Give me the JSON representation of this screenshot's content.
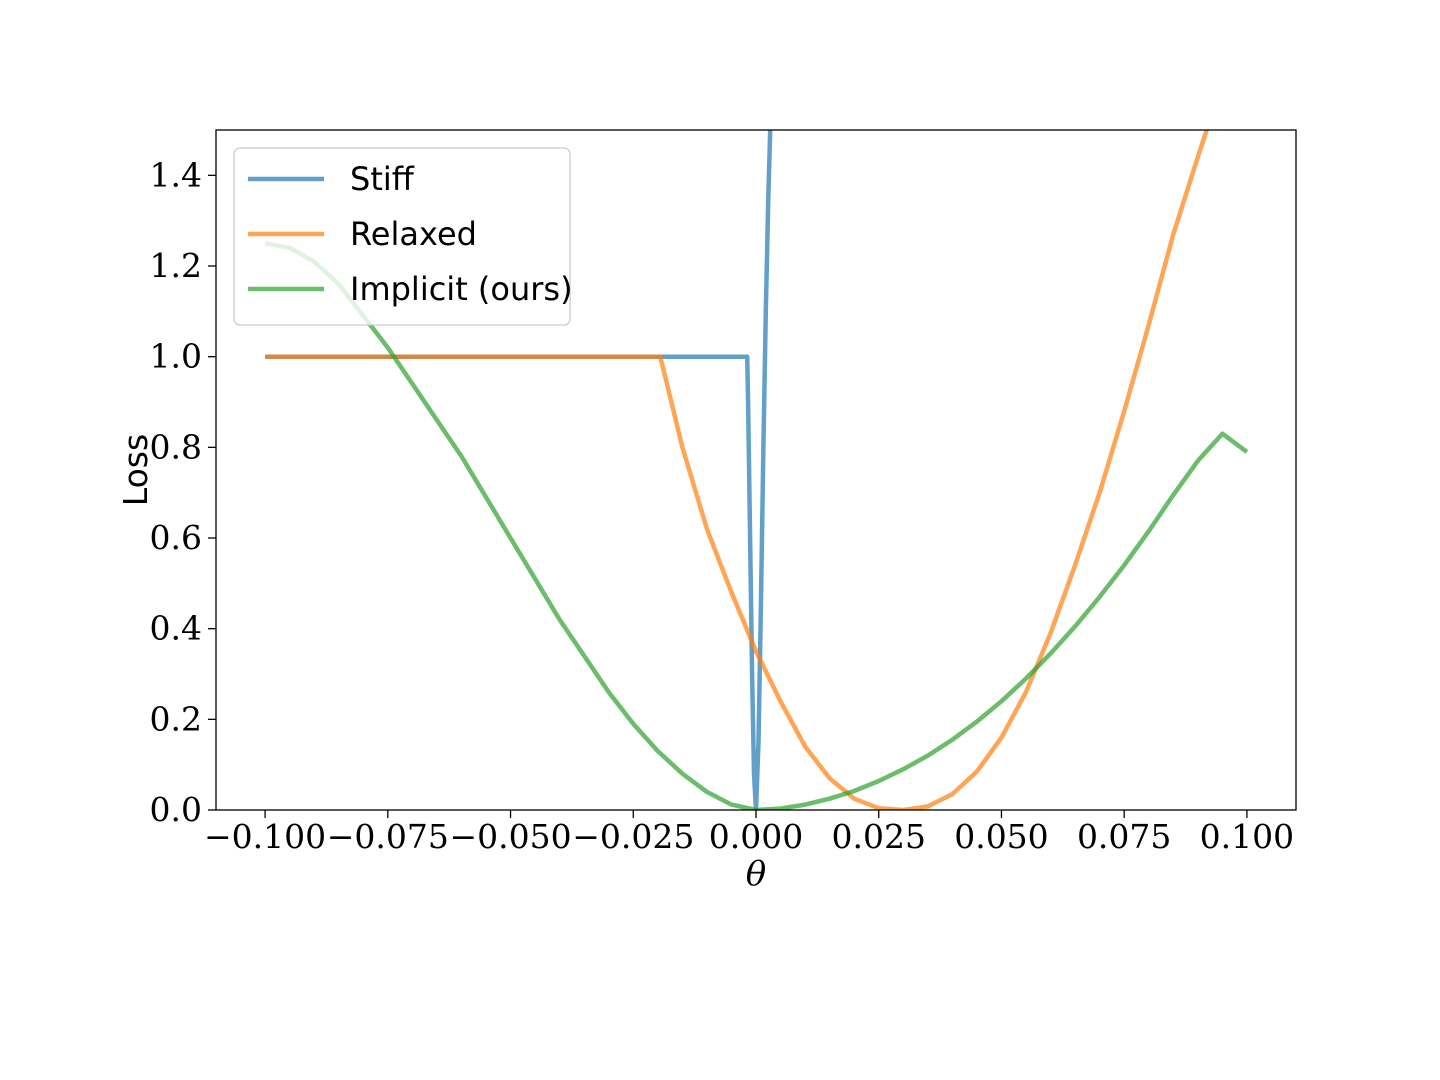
{
  "chart_data": {
    "type": "line",
    "xlabel": "θ",
    "ylabel": "Loss",
    "xlim": [
      -0.11,
      0.11
    ],
    "ylim": [
      0,
      1.5
    ],
    "grid": false,
    "legend_position": "top-left",
    "x_ticks": [
      -0.1,
      -0.075,
      -0.05,
      -0.025,
      0.0,
      0.025,
      0.05,
      0.075,
      0.1
    ],
    "x_tick_labels": [
      "−0.100",
      "−0.075",
      "−0.050",
      "−0.025",
      "0.000",
      "0.025",
      "0.050",
      "0.075",
      "0.100"
    ],
    "y_ticks": [
      0.0,
      0.2,
      0.4,
      0.6,
      0.8,
      1.0,
      1.2,
      1.4
    ],
    "y_tick_labels": [
      "0.0",
      "0.2",
      "0.4",
      "0.6",
      "0.8",
      "1.0",
      "1.2",
      "1.4"
    ],
    "series": [
      {
        "name": "Stiff",
        "color": "#1f77b4",
        "points": [
          [
            -0.1,
            1.0
          ],
          [
            -0.0018,
            1.0
          ],
          [
            -0.0016,
            0.9
          ],
          [
            -0.0012,
            0.6
          ],
          [
            -0.0008,
            0.3
          ],
          [
            -0.0004,
            0.08
          ],
          [
            0.0,
            0.0
          ],
          [
            0.0005,
            0.15
          ],
          [
            0.001,
            0.45
          ],
          [
            0.0015,
            0.8
          ],
          [
            0.002,
            1.1
          ],
          [
            0.0025,
            1.35
          ],
          [
            0.0029,
            1.5
          ]
        ]
      },
      {
        "name": "Relaxed",
        "color": "#ff7f0e",
        "points": [
          [
            -0.1,
            1.0
          ],
          [
            -0.0195,
            1.0
          ],
          [
            -0.015,
            0.8
          ],
          [
            -0.01,
            0.62
          ],
          [
            -0.005,
            0.48
          ],
          [
            0.0,
            0.35
          ],
          [
            0.005,
            0.24
          ],
          [
            0.01,
            0.14
          ],
          [
            0.015,
            0.07
          ],
          [
            0.02,
            0.025
          ],
          [
            0.025,
            0.004
          ],
          [
            0.03,
            0.0
          ],
          [
            0.035,
            0.008
          ],
          [
            0.04,
            0.035
          ],
          [
            0.045,
            0.085
          ],
          [
            0.05,
            0.16
          ],
          [
            0.055,
            0.26
          ],
          [
            0.06,
            0.39
          ],
          [
            0.065,
            0.54
          ],
          [
            0.07,
            0.7
          ],
          [
            0.075,
            0.88
          ],
          [
            0.08,
            1.07
          ],
          [
            0.085,
            1.27
          ],
          [
            0.09,
            1.44
          ],
          [
            0.0918,
            1.5
          ]
        ]
      },
      {
        "name": "Implicit (ours)",
        "color": "#2ca02c",
        "points": [
          [
            -0.1,
            1.25
          ],
          [
            -0.095,
            1.24
          ],
          [
            -0.09,
            1.21
          ],
          [
            -0.085,
            1.16
          ],
          [
            -0.08,
            1.09
          ],
          [
            -0.075,
            1.02
          ],
          [
            -0.07,
            0.94
          ],
          [
            -0.065,
            0.86
          ],
          [
            -0.06,
            0.78
          ],
          [
            -0.055,
            0.69
          ],
          [
            -0.05,
            0.6
          ],
          [
            -0.045,
            0.51
          ],
          [
            -0.04,
            0.42
          ],
          [
            -0.035,
            0.34
          ],
          [
            -0.03,
            0.26
          ],
          [
            -0.025,
            0.19
          ],
          [
            -0.02,
            0.13
          ],
          [
            -0.015,
            0.08
          ],
          [
            -0.01,
            0.04
          ],
          [
            -0.005,
            0.012
          ],
          [
            0.0,
            0.0
          ],
          [
            0.005,
            0.003
          ],
          [
            0.01,
            0.012
          ],
          [
            0.015,
            0.025
          ],
          [
            0.02,
            0.042
          ],
          [
            0.025,
            0.064
          ],
          [
            0.03,
            0.09
          ],
          [
            0.035,
            0.12
          ],
          [
            0.04,
            0.155
          ],
          [
            0.045,
            0.195
          ],
          [
            0.05,
            0.24
          ],
          [
            0.055,
            0.29
          ],
          [
            0.06,
            0.345
          ],
          [
            0.065,
            0.405
          ],
          [
            0.07,
            0.47
          ],
          [
            0.075,
            0.54
          ],
          [
            0.08,
            0.615
          ],
          [
            0.085,
            0.695
          ],
          [
            0.09,
            0.77
          ],
          [
            0.095,
            0.83
          ],
          [
            0.1,
            0.79
          ]
        ]
      }
    ]
  }
}
